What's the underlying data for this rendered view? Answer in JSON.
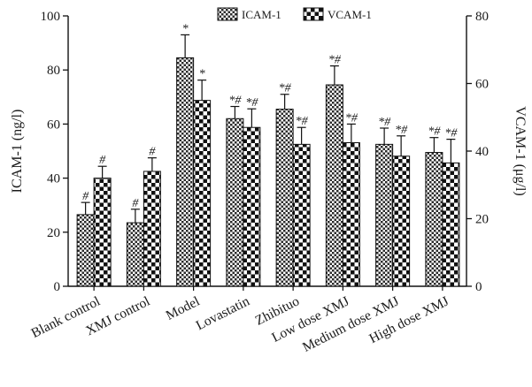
{
  "chart_data": {
    "type": "bar",
    "categories": [
      "Blank control",
      "XMJ control",
      "Model",
      "Lovastatin",
      "Zhibituo",
      "Low dose XMJ",
      "Medium dose XMJ",
      "High dose XMJ"
    ],
    "y_left_label": "ICAM-1 (ng/l)",
    "y_right_label": "VCAM-1  (μg/l)",
    "y_left_lim": [
      0,
      100
    ],
    "y_left_ticks": [
      "0",
      "20",
      "40",
      "60",
      "80",
      "100"
    ],
    "y_right_lim": [
      0,
      80
    ],
    "y_right_ticks": [
      "0",
      "20",
      "40",
      "60",
      "80"
    ],
    "legend_position": "top-center",
    "series": [
      {
        "name": "ICAM-1",
        "axis": "left",
        "values": [
          26.5,
          23.5,
          84.5,
          62.0,
          65.5,
          74.5,
          52.5,
          49.5
        ],
        "errors": [
          4.5,
          5.0,
          8.5,
          4.5,
          5.5,
          7.0,
          6.0,
          5.5
        ],
        "annotations": [
          "#",
          "#",
          "*",
          "*#",
          "*#",
          "*#",
          "*#",
          "*#"
        ]
      },
      {
        "name": "VCAM-1",
        "axis": "right",
        "values": [
          32.0,
          34.0,
          55.0,
          47.0,
          42.0,
          42.5,
          38.5,
          36.5
        ],
        "errors": [
          3.5,
          4.0,
          6.0,
          5.5,
          5.0,
          5.5,
          6.0,
          7.0
        ],
        "annotations": [
          "#",
          "#",
          "*",
          "*#",
          "*#",
          "*#",
          "*#",
          "*#"
        ]
      }
    ]
  }
}
